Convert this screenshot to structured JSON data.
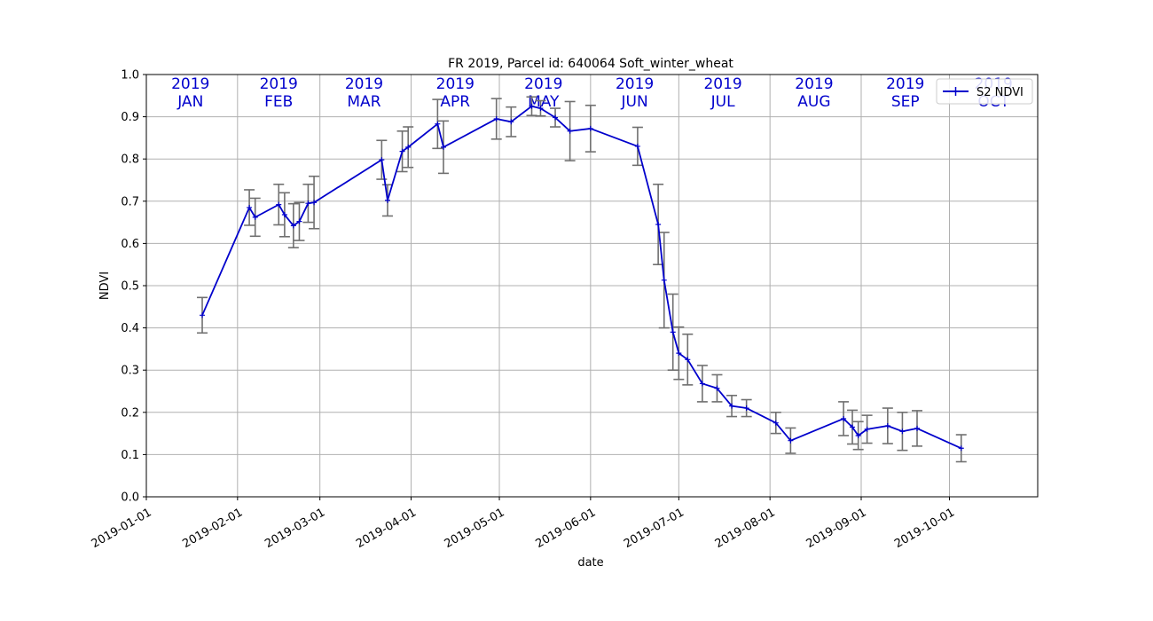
{
  "chart_data": {
    "type": "line",
    "title": "FR 2019, Parcel id: 640064 Soft_winter_wheat",
    "xlabel": "date",
    "ylabel": "NDVI",
    "ylim": [
      0.0,
      1.0
    ],
    "xlim": [
      "2019-01-01",
      "2019-10-31"
    ],
    "grid": true,
    "legend_position": "top-right",
    "colors": {
      "line": "#0000cc",
      "errorbar": "#707070",
      "month_text": "#0000cc",
      "grid": "#b0b0b0"
    },
    "y_ticks": [
      "0.0",
      "0.1",
      "0.2",
      "0.3",
      "0.4",
      "0.5",
      "0.6",
      "0.7",
      "0.8",
      "0.9",
      "1.0"
    ],
    "x_ticks": [
      "2019-01-01",
      "2019-02-01",
      "2019-03-01",
      "2019-04-01",
      "2019-05-01",
      "2019-06-01",
      "2019-07-01",
      "2019-08-01",
      "2019-09-01",
      "2019-10-01"
    ],
    "month_labels": [
      {
        "year": "2019",
        "month": "JAN",
        "start": "2019-01-01"
      },
      {
        "year": "2019",
        "month": "FEB",
        "start": "2019-02-01"
      },
      {
        "year": "2019",
        "month": "MAR",
        "start": "2019-03-01"
      },
      {
        "year": "2019",
        "month": "APR",
        "start": "2019-04-01"
      },
      {
        "year": "2019",
        "month": "MAY",
        "start": "2019-05-01"
      },
      {
        "year": "2019",
        "month": "JUN",
        "start": "2019-06-01"
      },
      {
        "year": "2019",
        "month": "JUL",
        "start": "2019-07-01"
      },
      {
        "year": "2019",
        "month": "AUG",
        "start": "2019-08-01"
      },
      {
        "year": "2019",
        "month": "SEP",
        "start": "2019-09-01"
      },
      {
        "year": "2019",
        "month": "OCT",
        "start": "2019-10-01"
      }
    ],
    "series": [
      {
        "name": "S2 NDVI",
        "points": [
          {
            "date": "2019-01-20",
            "y": 0.43,
            "err": 0.042
          },
          {
            "date": "2019-02-05",
            "y": 0.685,
            "err": 0.042
          },
          {
            "date": "2019-02-07",
            "y": 0.662,
            "err": 0.045
          },
          {
            "date": "2019-02-15",
            "y": 0.692,
            "err": 0.048
          },
          {
            "date": "2019-02-17",
            "y": 0.668,
            "err": 0.052
          },
          {
            "date": "2019-02-20",
            "y": 0.642,
            "err": 0.052
          },
          {
            "date": "2019-02-22",
            "y": 0.652,
            "err": 0.045
          },
          {
            "date": "2019-02-25",
            "y": 0.695,
            "err": 0.045
          },
          {
            "date": "2019-02-27",
            "y": 0.697,
            "err": 0.062
          },
          {
            "date": "2019-03-22",
            "y": 0.798,
            "err": 0.046
          },
          {
            "date": "2019-03-24",
            "y": 0.702,
            "err": 0.037
          },
          {
            "date": "2019-03-29",
            "y": 0.818,
            "err": 0.048
          },
          {
            "date": "2019-03-31",
            "y": 0.828,
            "err": 0.048
          },
          {
            "date": "2019-04-10",
            "y": 0.883,
            "err": 0.058
          },
          {
            "date": "2019-04-12",
            "y": 0.828,
            "err": 0.062
          },
          {
            "date": "2019-04-30",
            "y": 0.895,
            "err": 0.048
          },
          {
            "date": "2019-05-05",
            "y": 0.888,
            "err": 0.035
          },
          {
            "date": "2019-05-12",
            "y": 0.925,
            "err": 0.022
          },
          {
            "date": "2019-05-15",
            "y": 0.92,
            "err": 0.018
          },
          {
            "date": "2019-05-20",
            "y": 0.898,
            "err": 0.022
          },
          {
            "date": "2019-05-25",
            "y": 0.866,
            "err": 0.07
          },
          {
            "date": "2019-06-01",
            "y": 0.872,
            "err": 0.055
          },
          {
            "date": "2019-06-17",
            "y": 0.83,
            "err": 0.045
          },
          {
            "date": "2019-06-24",
            "y": 0.645,
            "err": 0.095
          },
          {
            "date": "2019-06-26",
            "y": 0.513,
            "err": 0.113
          },
          {
            "date": "2019-06-29",
            "y": 0.39,
            "err": 0.09
          },
          {
            "date": "2019-07-01",
            "y": 0.34,
            "err": 0.062
          },
          {
            "date": "2019-07-04",
            "y": 0.325,
            "err": 0.06
          },
          {
            "date": "2019-07-09",
            "y": 0.268,
            "err": 0.043
          },
          {
            "date": "2019-07-14",
            "y": 0.257,
            "err": 0.032
          },
          {
            "date": "2019-07-19",
            "y": 0.215,
            "err": 0.025
          },
          {
            "date": "2019-07-24",
            "y": 0.21,
            "err": 0.02
          },
          {
            "date": "2019-08-03",
            "y": 0.175,
            "err": 0.025
          },
          {
            "date": "2019-08-08",
            "y": 0.133,
            "err": 0.03
          },
          {
            "date": "2019-08-26",
            "y": 0.185,
            "err": 0.04
          },
          {
            "date": "2019-08-29",
            "y": 0.165,
            "err": 0.04
          },
          {
            "date": "2019-08-31",
            "y": 0.145,
            "err": 0.033
          },
          {
            "date": "2019-09-03",
            "y": 0.16,
            "err": 0.033
          },
          {
            "date": "2019-09-10",
            "y": 0.168,
            "err": 0.042
          },
          {
            "date": "2019-09-15",
            "y": 0.155,
            "err": 0.045
          },
          {
            "date": "2019-09-20",
            "y": 0.162,
            "err": 0.042
          },
          {
            "date": "2019-10-05",
            "y": 0.115,
            "err": 0.032
          }
        ]
      }
    ]
  }
}
